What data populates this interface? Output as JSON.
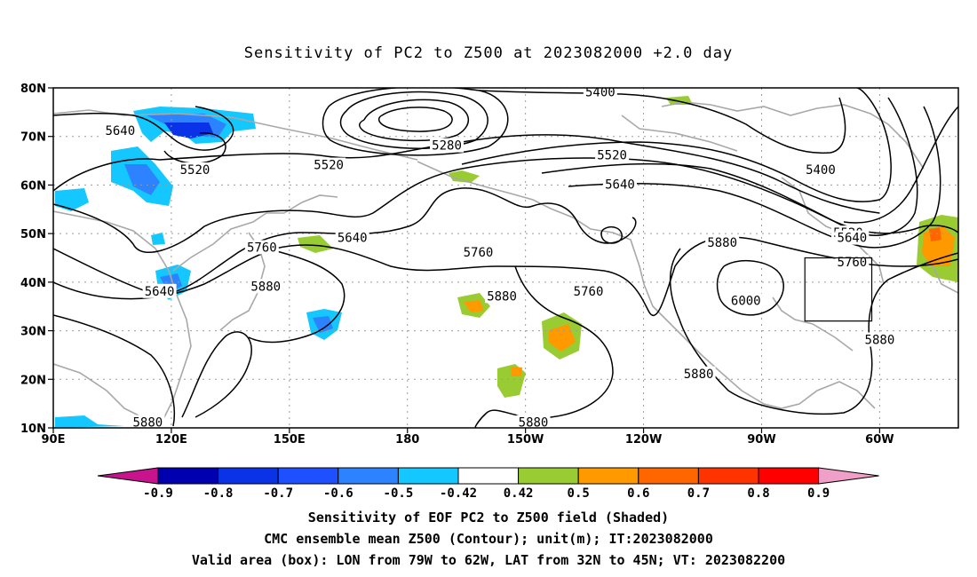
{
  "title": "Sensitivity of PC2 to Z500 at 2023082000 +2.0 day",
  "footer": {
    "line1": "Sensitivity of EOF PC2 to Z500 field (Shaded)",
    "line2": "CMC ensemble mean Z500 (Contour); unit(m); IT:2023082000",
    "line3": "Valid area (box): LON from 79W to 62W, LAT from 32N to 45N; VT: 2023082200"
  },
  "map": {
    "lon_range": [
      90,
      320
    ],
    "lat_range": [
      10,
      80
    ],
    "lat_ticks": [
      {
        "value": 80,
        "label": "80N"
      },
      {
        "value": 70,
        "label": "70N"
      },
      {
        "value": 60,
        "label": "60N"
      },
      {
        "value": 50,
        "label": "50N"
      },
      {
        "value": 40,
        "label": "40N"
      },
      {
        "value": 30,
        "label": "30N"
      },
      {
        "value": 20,
        "label": "20N"
      },
      {
        "value": 10,
        "label": "10N"
      }
    ],
    "lon_ticks": [
      {
        "value": 90,
        "label": "90E"
      },
      {
        "value": 120,
        "label": "120E"
      },
      {
        "value": 150,
        "label": "150E"
      },
      {
        "value": 180,
        "label": "180"
      },
      {
        "value": 210,
        "label": "150W"
      },
      {
        "value": 240,
        "label": "120W"
      },
      {
        "value": 270,
        "label": "90W"
      },
      {
        "value": 300,
        "label": "60W"
      }
    ],
    "valid_box": {
      "lon_min": 281,
      "lon_max": 298,
      "lat_min": 32,
      "lat_max": 45
    },
    "contour_labels": [
      {
        "text": "5640",
        "lon": 107,
        "lat": 71
      },
      {
        "text": "5520",
        "lon": 126,
        "lat": 63
      },
      {
        "text": "5280",
        "lon": 190,
        "lat": 68
      },
      {
        "text": "5400",
        "lon": 229,
        "lat": 79
      },
      {
        "text": "5520",
        "lon": 232,
        "lat": 66
      },
      {
        "text": "5640",
        "lon": 234,
        "lat": 60
      },
      {
        "text": "5520",
        "lon": 160,
        "lat": 64
      },
      {
        "text": "5640",
        "lon": 166,
        "lat": 49
      },
      {
        "text": "5760",
        "lon": 143,
        "lat": 47
      },
      {
        "text": "5640",
        "lon": 117,
        "lat": 38
      },
      {
        "text": "5880",
        "lon": 144,
        "lat": 39
      },
      {
        "text": "5760",
        "lon": 198,
        "lat": 46
      },
      {
        "text": "5880",
        "lon": 204,
        "lat": 37
      },
      {
        "text": "5760",
        "lon": 226,
        "lat": 38
      },
      {
        "text": "5880",
        "lon": 260,
        "lat": 48
      },
      {
        "text": "6000",
        "lon": 266,
        "lat": 36
      },
      {
        "text": "5400",
        "lon": 285,
        "lat": 63
      },
      {
        "text": "5520",
        "lon": 292,
        "lat": 50
      },
      {
        "text": "5640",
        "lon": 293,
        "lat": 49
      },
      {
        "text": "5760",
        "lon": 293,
        "lat": 44
      },
      {
        "text": "5880",
        "lon": 300,
        "lat": 28
      },
      {
        "text": "5880",
        "lon": 254,
        "lat": 21
      },
      {
        "text": "5880",
        "lon": 114,
        "lat": 11
      },
      {
        "text": "5880",
        "lon": 212,
        "lat": 11
      }
    ]
  },
  "colorbar": {
    "labels": [
      "-0.9",
      "-0.8",
      "-0.7",
      "-0.6",
      "-0.5",
      "-0.42",
      "0.42",
      "0.5",
      "0.6",
      "0.7",
      "0.8",
      "0.9"
    ],
    "colors": [
      "#0000b0",
      "#0a32e6",
      "#1e50ff",
      "#2d82ff",
      "#14c8ff",
      "#ffffff",
      "#99cc33",
      "#ff9900",
      "#ff6600",
      "#ff3300",
      "#ff0000"
    ],
    "under_color": "#c8148c",
    "over_color": "#f0a0c8"
  }
}
